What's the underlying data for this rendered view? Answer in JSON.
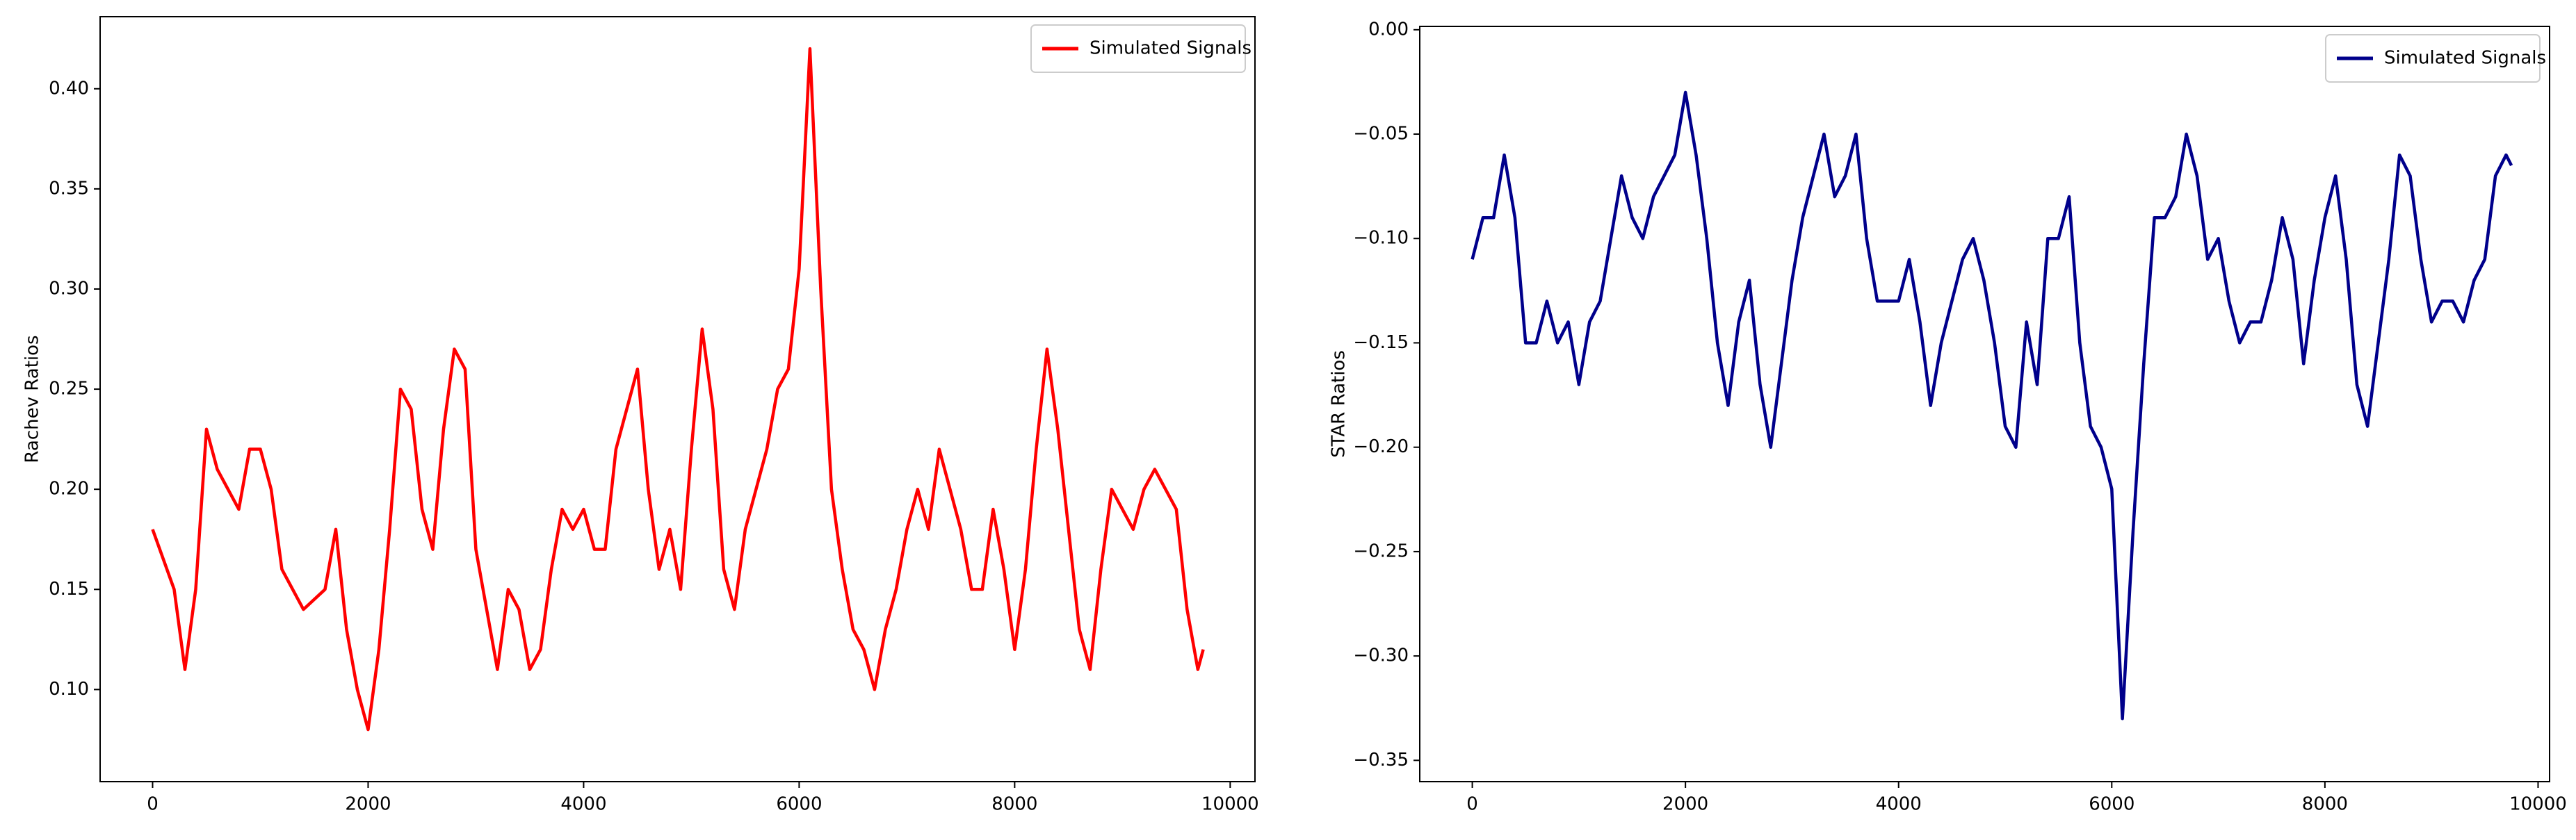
{
  "chart_data": [
    {
      "type": "line",
      "ylabel": "Rachev Ratios",
      "legend": "upper right",
      "grid": false,
      "xlim": [
        -487,
        10230
      ],
      "ylim": [
        0.054,
        0.436
      ],
      "xticks": [
        0,
        2000,
        4000,
        6000,
        8000,
        10000
      ],
      "yticks": [
        {
          "value": 0.1,
          "label": "0.10"
        },
        0.15,
        {
          "value": 0.2,
          "label": "0.20"
        },
        0.25,
        {
          "value": 0.3,
          "label": "0.30"
        },
        0.35,
        {
          "value": 0.4,
          "label": "0.40"
        }
      ],
      "x": [
        0,
        200,
        300,
        400,
        500,
        600,
        800,
        900,
        1000,
        1100,
        1200,
        1400,
        1600,
        1700,
        1800,
        1900,
        2000,
        2100,
        2200,
        2300,
        2400,
        2500,
        2600,
        2700,
        2800,
        2900,
        3000,
        3100,
        3200,
        3300,
        3400,
        3500,
        3600,
        3700,
        3800,
        3900,
        4000,
        4100,
        4200,
        4300,
        4400,
        4500,
        4600,
        4700,
        4800,
        4900,
        5000,
        5100,
        5200,
        5300,
        5400,
        5500,
        5600,
        5700,
        5800,
        5900,
        6000,
        6100,
        6200,
        6300,
        6400,
        6500,
        6600,
        6700,
        6800,
        6900,
        7000,
        7100,
        7200,
        7300,
        7400,
        7500,
        7600,
        7700,
        7800,
        7900,
        8000,
        8100,
        8200,
        8300,
        8400,
        8500,
        8600,
        8700,
        8800,
        8900,
        9000,
        9100,
        9200,
        9300,
        9400,
        9500,
        9600,
        9700,
        9750
      ],
      "series": [
        {
          "name": "Simulated Signals",
          "color": "#ff0000",
          "values": [
            0.18,
            0.15,
            0.11,
            0.15,
            0.23,
            0.21,
            0.19,
            0.22,
            0.22,
            0.2,
            0.16,
            0.14,
            0.15,
            0.18,
            0.13,
            0.1,
            0.08,
            0.12,
            0.18,
            0.25,
            0.24,
            0.19,
            0.17,
            0.23,
            0.27,
            0.26,
            0.17,
            0.14,
            0.11,
            0.15,
            0.14,
            0.11,
            0.12,
            0.16,
            0.19,
            0.18,
            0.19,
            0.17,
            0.17,
            0.22,
            0.24,
            0.26,
            0.2,
            0.16,
            0.18,
            0.15,
            0.22,
            0.28,
            0.24,
            0.16,
            0.14,
            0.18,
            0.2,
            0.22,
            0.25,
            0.26,
            0.31,
            0.42,
            0.3,
            0.2,
            0.16,
            0.13,
            0.12,
            0.1,
            0.13,
            0.15,
            0.18,
            0.2,
            0.18,
            0.22,
            0.2,
            0.18,
            0.15,
            0.15,
            0.19,
            0.16,
            0.12,
            0.16,
            0.22,
            0.27,
            0.23,
            0.18,
            0.13,
            0.11,
            0.16,
            0.2,
            0.19,
            0.18,
            0.2,
            0.21,
            0.2,
            0.19,
            0.14,
            0.11,
            0.12
          ]
        }
      ]
    },
    {
      "type": "line",
      "ylabel": "STAR Ratios",
      "legend": "upper right",
      "grid": false,
      "xlim": [
        -493,
        10108
      ],
      "ylim": [
        -0.3602,
        0.0016
      ],
      "xticks": [
        0,
        2000,
        4000,
        6000,
        8000,
        10000
      ],
      "yticks": [
        {
          "value": -0.35,
          "label": "−0.35"
        },
        {
          "value": -0.3,
          "label": "−0.30"
        },
        {
          "value": -0.25,
          "label": "−0.25"
        },
        {
          "value": -0.2,
          "label": "−0.20"
        },
        {
          "value": -0.15,
          "label": "−0.15"
        },
        {
          "value": -0.1,
          "label": "−0.10"
        },
        {
          "value": -0.05,
          "label": "−0.05"
        },
        {
          "value": 0,
          "label": "0.00"
        }
      ],
      "x": [
        0,
        100,
        200,
        300,
        400,
        500,
        600,
        700,
        800,
        900,
        1000,
        1100,
        1200,
        1300,
        1400,
        1500,
        1600,
        1700,
        1800,
        1900,
        2000,
        2100,
        2200,
        2300,
        2400,
        2500,
        2600,
        2700,
        2800,
        2900,
        3000,
        3100,
        3200,
        3300,
        3400,
        3500,
        3600,
        3700,
        3800,
        3900,
        4000,
        4100,
        4200,
        4300,
        4400,
        4500,
        4600,
        4700,
        4800,
        4900,
        5000,
        5100,
        5200,
        5300,
        5400,
        5500,
        5600,
        5700,
        5800,
        5900,
        6000,
        6100,
        6200,
        6300,
        6400,
        6500,
        6600,
        6700,
        6800,
        6900,
        7000,
        7100,
        7200,
        7300,
        7400,
        7500,
        7600,
        7700,
        7800,
        7900,
        8000,
        8100,
        8200,
        8300,
        8400,
        8500,
        8600,
        8700,
        8800,
        8900,
        9000,
        9100,
        9200,
        9300,
        9400,
        9500,
        9600,
        9700,
        9750
      ],
      "series": [
        {
          "name": "Simulated Signals",
          "color": "#00008b",
          "values": [
            -0.11,
            -0.09,
            -0.09,
            -0.06,
            -0.09,
            -0.15,
            -0.15,
            -0.13,
            -0.15,
            -0.14,
            -0.17,
            -0.14,
            -0.13,
            -0.1,
            -0.07,
            -0.09,
            -0.1,
            -0.08,
            -0.07,
            -0.06,
            -0.03,
            -0.06,
            -0.1,
            -0.15,
            -0.18,
            -0.14,
            -0.12,
            -0.17,
            -0.2,
            -0.16,
            -0.12,
            -0.09,
            -0.07,
            -0.05,
            -0.08,
            -0.07,
            -0.05,
            -0.1,
            -0.13,
            -0.13,
            -0.13,
            -0.11,
            -0.14,
            -0.18,
            -0.15,
            -0.13,
            -0.11,
            -0.1,
            -0.12,
            -0.15,
            -0.19,
            -0.2,
            -0.14,
            -0.17,
            -0.1,
            -0.1,
            -0.08,
            -0.15,
            -0.19,
            -0.2,
            -0.22,
            -0.33,
            -0.24,
            -0.16,
            -0.09,
            -0.09,
            -0.08,
            -0.05,
            -0.07,
            -0.11,
            -0.1,
            -0.13,
            -0.15,
            -0.14,
            -0.14,
            -0.12,
            -0.09,
            -0.11,
            -0.16,
            -0.12,
            -0.09,
            -0.07,
            -0.11,
            -0.17,
            -0.19,
            -0.15,
            -0.11,
            -0.06,
            -0.07,
            -0.11,
            -0.14,
            -0.13,
            -0.13,
            -0.14,
            -0.12,
            -0.11,
            -0.07,
            -0.06,
            -0.065
          ]
        }
      ]
    }
  ]
}
